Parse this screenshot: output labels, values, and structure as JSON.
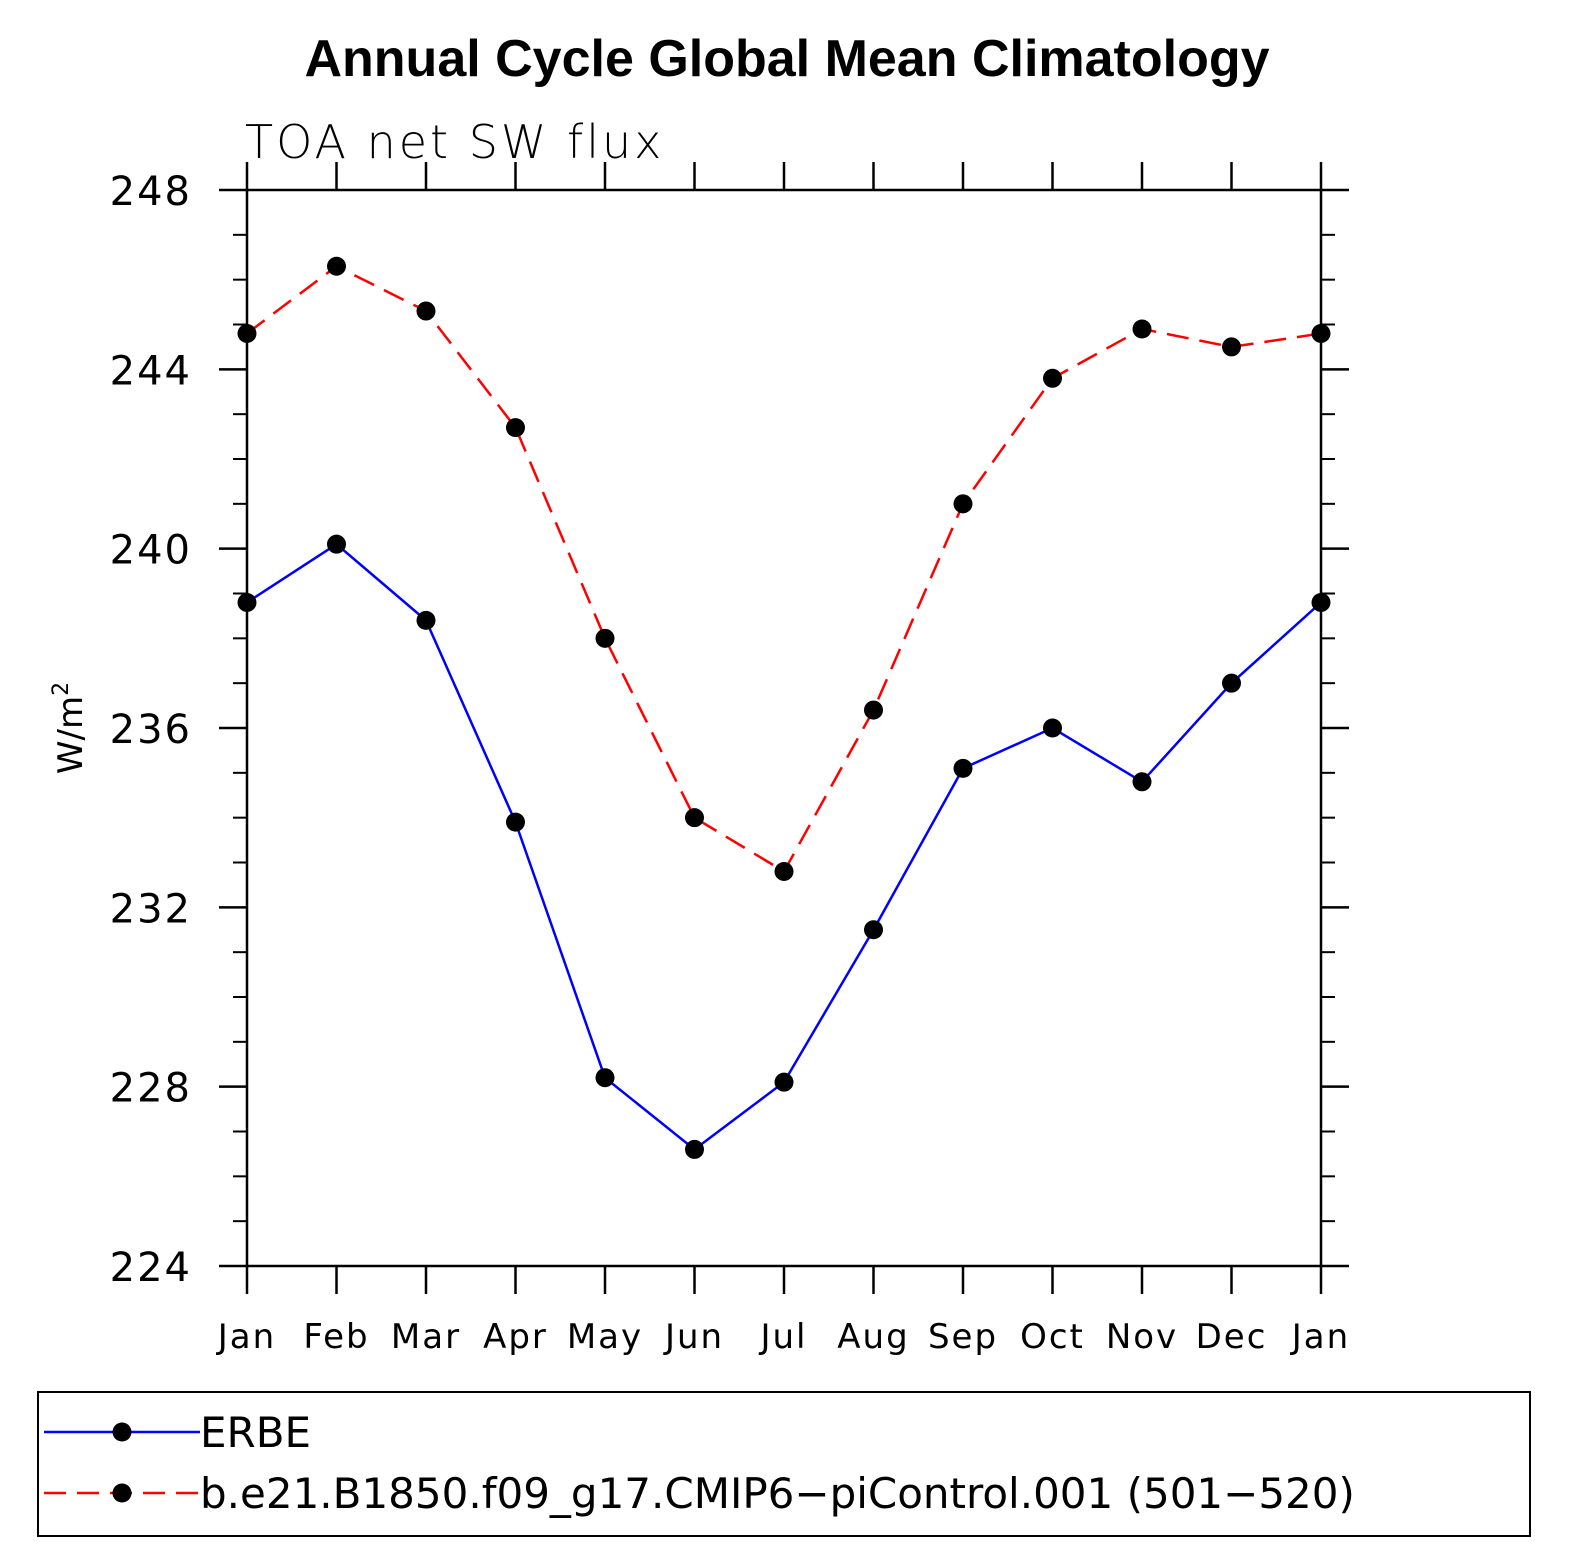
{
  "chart_data": {
    "type": "line",
    "title": "Annual Cycle Global Mean Climatology",
    "subtitle": "TOA net SW flux",
    "ylabel": "W/m",
    "ylabel_superscript": "2",
    "xlabel": "",
    "categories": [
      "Jan",
      "Feb",
      "Mar",
      "Apr",
      "May",
      "Jun",
      "Jul",
      "Aug",
      "Sep",
      "Oct",
      "Nov",
      "Dec",
      "Jan"
    ],
    "ylim": [
      224,
      248
    ],
    "yticks": [
      "224",
      "228",
      "232",
      "236",
      "240",
      "244",
      "248"
    ],
    "grid": false,
    "legend_position": "bottom",
    "series": [
      {
        "name": "ERBE",
        "color": "#0000ff",
        "dash": "solid",
        "marker": "circle",
        "values": [
          238.8,
          240.1,
          238.4,
          233.9,
          228.2,
          226.6,
          228.1,
          231.5,
          235.1,
          236.0,
          234.8,
          237.0,
          238.8
        ]
      },
      {
        "name": "b.e21.B1850.f09_g17.CMIP6−piControl.001 (501−520)",
        "color": "#ff0000",
        "dash": "dashed",
        "marker": "circle",
        "values": [
          244.8,
          246.3,
          245.3,
          242.7,
          238.0,
          234.0,
          232.8,
          236.4,
          241.0,
          243.8,
          244.9,
          244.5,
          244.8
        ]
      }
    ]
  }
}
